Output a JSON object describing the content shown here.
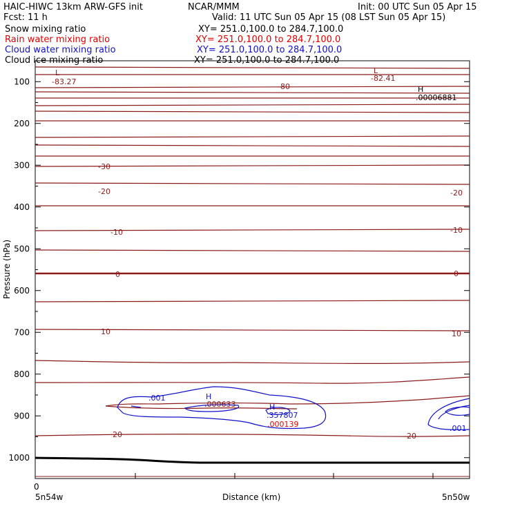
{
  "header": {
    "title_left": "HAIC-HIWC 13km ARW-GFS init",
    "org": "NCAR/MMM",
    "init": "Init: 00 UTC Sun 05 Apr 15",
    "fcst": "Fcst:    11 h",
    "valid": "Valid: 11 UTC Sun 05 Apr 15 (08 LST Sun 05 Apr 15)",
    "fields": [
      {
        "name": "Snow mixing ratio",
        "xy": "XY= 251.0,100.0 to 284.7,100.0",
        "color": "#000000"
      },
      {
        "name": "Rain water mixing ratio",
        "xy": "XY= 251.0,100.0 to 284.7,100.0",
        "color": "#e00000"
      },
      {
        "name": "Cloud water mixing ratio",
        "xy": "XY= 251.0,100.0 to 284.7,100.0",
        "color": "#1010c8"
      },
      {
        "name": "Cloud ice mixing ratio",
        "xy": "XY= 251.0,100.0 to 284.7,100.0",
        "color": "#000000"
      }
    ]
  },
  "chart_data": {
    "type": "contour",
    "ylabel": "Pressure (hPa)",
    "xlabel": "Distance (km)",
    "y_ticks": [
      100,
      200,
      300,
      400,
      500,
      600,
      700,
      800,
      900,
      1000
    ],
    "y_range": [
      50,
      1050
    ],
    "x_start_label": "0",
    "x_left_label": "5n54w",
    "x_right_label": "5n50w",
    "temperature_isotherm_labels": [
      "-83.27",
      "-82.41",
      "-80",
      "-30",
      "-20",
      "-20",
      "-10",
      "-10",
      "0",
      "0",
      "10",
      "10",
      "20",
      "20"
    ],
    "extrema_labels": [
      {
        "mark": "L",
        "value": "-83.27",
        "color": "#8b1a1a"
      },
      {
        "mark": "L",
        "value": "-82.41",
        "color": "#8b1a1a"
      },
      {
        "mark": "H",
        "value": ".00006881",
        "color": "#000000"
      },
      {
        "mark": "H",
        "value": ".000139",
        "color": "#e00000"
      },
      {
        "mark": "H",
        "value": ".357807",
        "color": "#1010c8"
      },
      {
        "mark": "H",
        "value": ".000633",
        "color": "#8b1a1a"
      }
    ],
    "cloud_water_labels": [
      ".001",
      ".001"
    ],
    "colors": {
      "isotherm": "#8b1a1a",
      "cloud_water": "#1010c8",
      "rain": "#e00000",
      "terrain": "#000000"
    }
  }
}
